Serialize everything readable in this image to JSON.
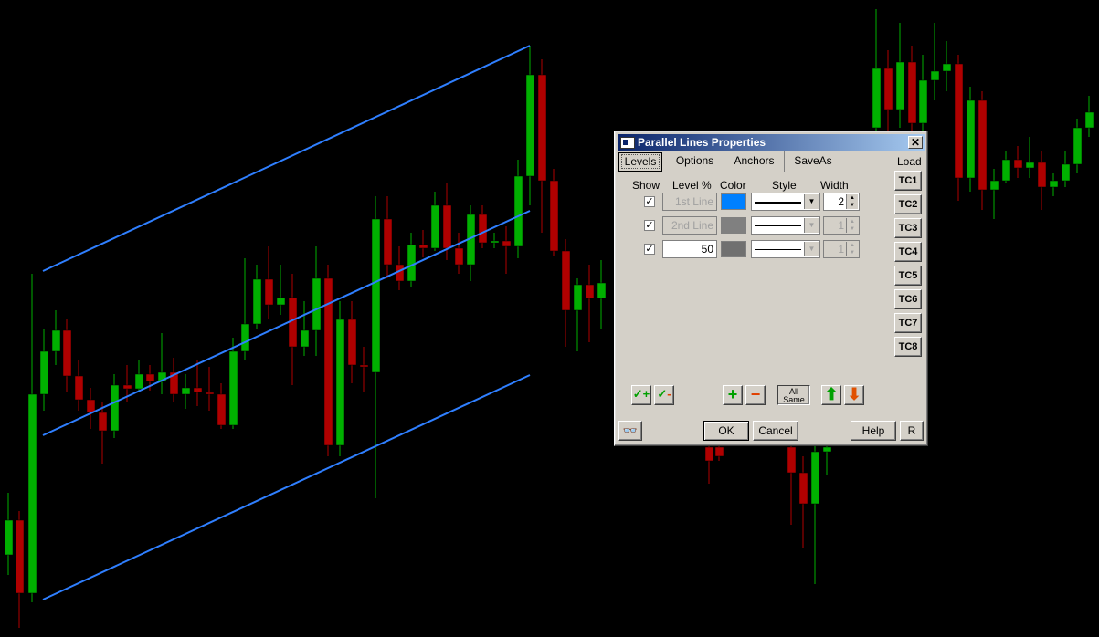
{
  "dialog": {
    "title": "Parallel Lines Properties",
    "close": "✕",
    "tabs": [
      "Levels",
      "Options",
      "Anchors",
      "SaveAs"
    ],
    "headers": {
      "show": "Show",
      "level": "Level %",
      "color": "Color",
      "style": "Style",
      "width": "Width"
    },
    "load_label": "Load",
    "tc_buttons": [
      "TC1",
      "TC2",
      "TC3",
      "TC4",
      "TC5",
      "TC6",
      "TC7",
      "TC8"
    ],
    "levels": [
      {
        "checked": "✓",
        "level": "1st Line",
        "color": "#0080ff",
        "width": "2",
        "enabled": false
      },
      {
        "checked": "✓",
        "level": "2nd Line",
        "color": "#808080",
        "width": "1",
        "enabled": false
      },
      {
        "checked": "✓",
        "level": "50",
        "color": "#707070",
        "width": "1",
        "enabled": true
      }
    ],
    "all_same": [
      "All",
      "Same"
    ],
    "ok": "OK",
    "cancel": "Cancel",
    "help": "Help",
    "reset": "R",
    "colors": {
      "add": "#00a000",
      "remove": "#e04000",
      "up": "#00a000",
      "down": "#e05000"
    }
  },
  "chart_data": {
    "type": "candlestick",
    "colors": {
      "up": "#00b000",
      "down": "#b00000",
      "channel": "#2f7fff",
      "background": "#000000"
    }
  }
}
